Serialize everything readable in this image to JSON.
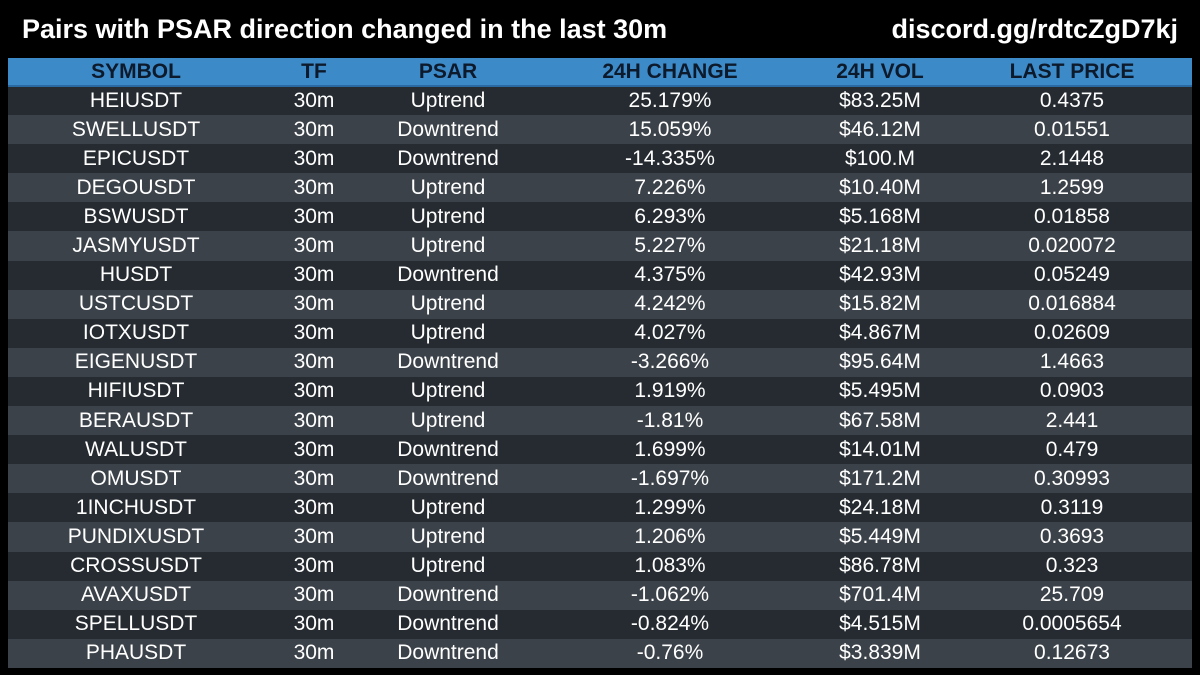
{
  "header": {
    "title": "Pairs with PSAR direction changed in the last 30m",
    "link": "discord.gg/rdtcZgD7kj"
  },
  "colors": {
    "background": "#000000",
    "header_row": "#3d8ac9",
    "row_dark": "#252b31",
    "row_light": "#3b4249",
    "text": "#ffffff"
  },
  "table": {
    "columns": [
      "SYMBOL",
      "TF",
      "PSAR",
      "24H CHANGE",
      "24H VOL",
      "LAST PRICE"
    ],
    "rows": [
      [
        "HEIUSDT",
        "30m",
        "Uptrend",
        "25.179%",
        "$83.25M",
        "0.4375"
      ],
      [
        "SWELLUSDT",
        "30m",
        "Downtrend",
        "15.059%",
        "$46.12M",
        "0.01551"
      ],
      [
        "EPICUSDT",
        "30m",
        "Downtrend",
        "-14.335%",
        "$100.M",
        "2.1448"
      ],
      [
        "DEGOUSDT",
        "30m",
        "Uptrend",
        "7.226%",
        "$10.40M",
        "1.2599"
      ],
      [
        "BSWUSDT",
        "30m",
        "Uptrend",
        "6.293%",
        "$5.168M",
        "0.01858"
      ],
      [
        "JASMYUSDT",
        "30m",
        "Uptrend",
        "5.227%",
        "$21.18M",
        "0.020072"
      ],
      [
        "HUSDT",
        "30m",
        "Downtrend",
        "4.375%",
        "$42.93M",
        "0.05249"
      ],
      [
        "USTCUSDT",
        "30m",
        "Uptrend",
        "4.242%",
        "$15.82M",
        "0.016884"
      ],
      [
        "IOTXUSDT",
        "30m",
        "Uptrend",
        "4.027%",
        "$4.867M",
        "0.02609"
      ],
      [
        "EIGENUSDT",
        "30m",
        "Downtrend",
        "-3.266%",
        "$95.64M",
        "1.4663"
      ],
      [
        "HIFIUSDT",
        "30m",
        "Uptrend",
        "1.919%",
        "$5.495M",
        "0.0903"
      ],
      [
        "BERAUSDT",
        "30m",
        "Uptrend",
        "-1.81%",
        "$67.58M",
        "2.441"
      ],
      [
        "WALUSDT",
        "30m",
        "Downtrend",
        "1.699%",
        "$14.01M",
        "0.479"
      ],
      [
        "OMUSDT",
        "30m",
        "Downtrend",
        "-1.697%",
        "$171.2M",
        "0.30993"
      ],
      [
        "1INCHUSDT",
        "30m",
        "Uptrend",
        "1.299%",
        "$24.18M",
        "0.3119"
      ],
      [
        "PUNDIXUSDT",
        "30m",
        "Uptrend",
        "1.206%",
        "$5.449M",
        "0.3693"
      ],
      [
        "CROSSUSDT",
        "30m",
        "Uptrend",
        "1.083%",
        "$86.78M",
        "0.323"
      ],
      [
        "AVAXUSDT",
        "30m",
        "Downtrend",
        "-1.062%",
        "$701.4M",
        "25.709"
      ],
      [
        "SPELLUSDT",
        "30m",
        "Downtrend",
        "-0.824%",
        "$4.515M",
        "0.0005654"
      ],
      [
        "PHAUSDT",
        "30m",
        "Downtrend",
        "-0.76%",
        "$3.839M",
        "0.12673"
      ]
    ]
  }
}
